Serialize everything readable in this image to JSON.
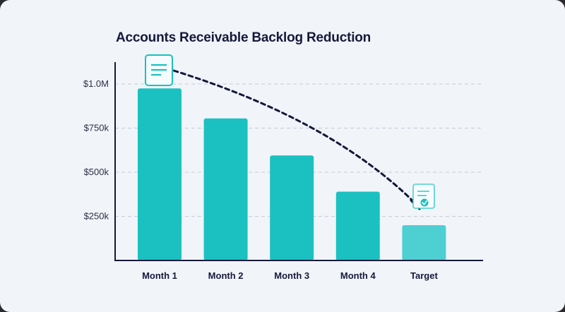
{
  "chart_data": {
    "type": "bar",
    "title": "Accounts Receivable Backlog Reduction",
    "xlabel": "",
    "ylabel": "",
    "categories": [
      "Month 1",
      "Month 2",
      "Month 3",
      "Month 4",
      "Target"
    ],
    "values": [
      975000,
      805000,
      595000,
      390000,
      200000
    ],
    "ylim": [
      0,
      1000000
    ],
    "yticks": [
      250000,
      500000,
      750000,
      1000000
    ],
    "ytick_labels": [
      "$250k",
      "$500k",
      "$750k",
      "$1.0M"
    ],
    "grid": "dashed horizontal",
    "legend": "none",
    "annotations": [
      {
        "type": "dashed-arrow",
        "from": "Month 1",
        "to": "Target",
        "meaning": "downward trend"
      },
      {
        "type": "document-icon",
        "at": "Month 1"
      },
      {
        "type": "approved-document-icon",
        "at": "Target"
      }
    ],
    "colors": {
      "bar": "#1bc1c1",
      "target_bar": "#4ecfd2",
      "text": "#15193b",
      "arrow": "#12183a",
      "grid": "#c6cbd6"
    }
  },
  "icons": [
    "document-icon",
    "approved-document-icon"
  ]
}
